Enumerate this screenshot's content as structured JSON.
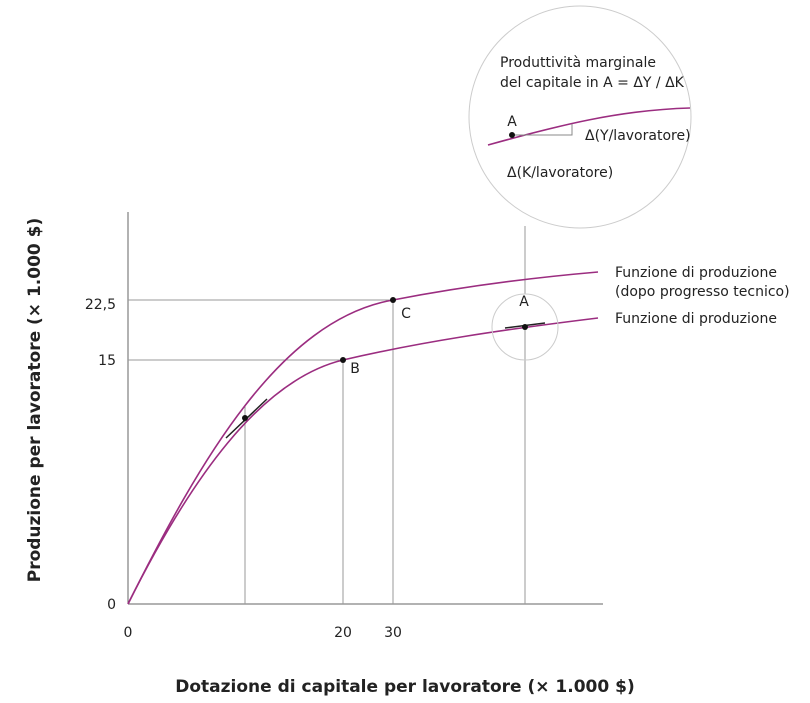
{
  "axes": {
    "x_label": "Dotazione di capitale per lavoratore (× 1.000 $)",
    "y_label": "Produzione per lavoratore (× 1.000 $)",
    "x_ticks": [
      "0",
      "20",
      "30"
    ],
    "y_ticks": [
      "0",
      "15",
      "22,5"
    ]
  },
  "curves": [
    {
      "label_lines": [
        "Funzione di produzione",
        "(dopo progresso tecnico)"
      ]
    },
    {
      "label_lines": [
        "Funzione di produzione"
      ]
    }
  ],
  "points": [
    "A",
    "B",
    "C"
  ],
  "inset": {
    "title_lines": [
      "Produttività marginale",
      "del capitale in A = ΔY / ΔK"
    ],
    "point": "A",
    "dy_label": "Δ(Y/lavoratore)",
    "dx_label": "Δ(K/lavoratore)"
  }
}
